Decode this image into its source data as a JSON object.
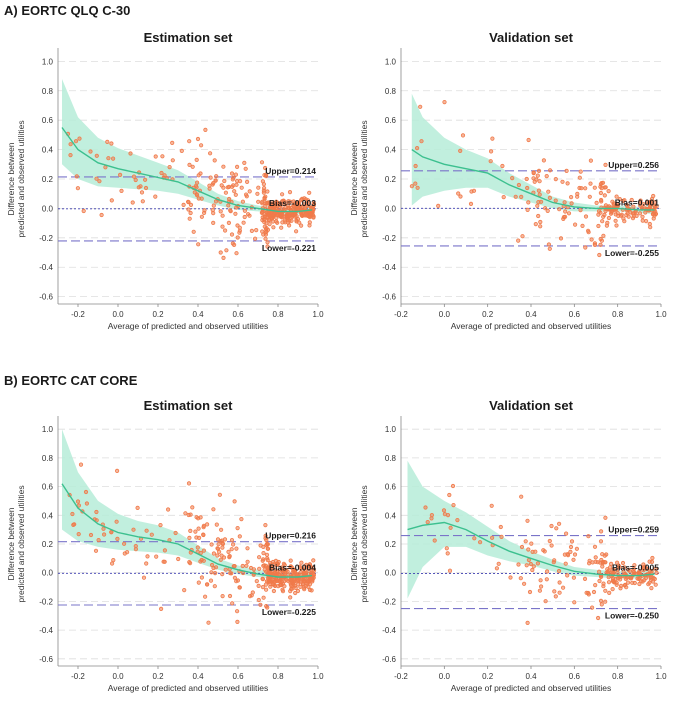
{
  "sections": [
    {
      "title": "A) EORTC QLQ C-30"
    },
    {
      "title": "B) EORTC CAT CORE"
    }
  ],
  "colors": {
    "points": "#f07a4a",
    "band": "#b6ecd8",
    "smooth": "#3cc08f",
    "limit_line": "#7a74c9",
    "bias_line": "#3f3fb0",
    "grid": "#dddddd"
  },
  "chart_data": [
    {
      "id": "a-estimation",
      "type": "scatter",
      "title": "Estimation set",
      "xlabel": "Average of predicted and observed utilities",
      "ylabel": [
        "Difference between",
        "predicted and observed utilities"
      ],
      "xlim": [
        -0.3,
        1.0
      ],
      "xticks": [
        -0.2,
        0.0,
        0.2,
        0.4,
        0.6,
        0.8,
        1.0
      ],
      "ylim": [
        -0.65,
        1.05
      ],
      "yticks": [
        -0.6,
        -0.4,
        -0.2,
        0.0,
        0.2,
        0.4,
        0.6,
        0.8,
        1.0
      ],
      "upper": 0.214,
      "bias": -0.003,
      "lower": -0.221,
      "upper_label": "Upper=0.214",
      "bias_label": "Bias=-0.003",
      "lower_label": "Lower=-0.221",
      "smooth": {
        "x": [
          -0.28,
          -0.2,
          -0.1,
          0.0,
          0.1,
          0.2,
          0.3,
          0.4,
          0.5,
          0.6,
          0.7,
          0.8,
          0.9,
          0.97
        ],
        "y": [
          0.55,
          0.4,
          0.31,
          0.27,
          0.24,
          0.21,
          0.18,
          0.12,
          0.06,
          0.02,
          0.0,
          -0.02,
          -0.02,
          -0.01
        ],
        "upper": [
          0.88,
          0.62,
          0.48,
          0.41,
          0.36,
          0.31,
          0.26,
          0.18,
          0.1,
          0.05,
          0.02,
          0.0,
          0.0,
          0.02
        ],
        "lower": [
          0.3,
          0.2,
          0.15,
          0.14,
          0.13,
          0.12,
          0.1,
          0.06,
          0.02,
          -0.01,
          -0.02,
          -0.04,
          -0.04,
          -0.04
        ]
      },
      "scatter_seed": 11,
      "scatter_n": 420
    },
    {
      "id": "a-validation",
      "type": "scatter",
      "title": "Validation set",
      "xlabel": "Average of predicted and observed utilities",
      "ylabel": [
        "Difference between",
        "predicted and observed utilities"
      ],
      "xlim": [
        -0.2,
        1.0
      ],
      "xticks": [
        -0.2,
        0.0,
        0.2,
        0.4,
        0.6,
        0.8,
        1.0
      ],
      "ylim": [
        -0.65,
        1.05
      ],
      "yticks": [
        -0.6,
        -0.4,
        -0.2,
        0.0,
        0.2,
        0.4,
        0.6,
        0.8,
        1.0
      ],
      "upper": 0.256,
      "bias": 0.001,
      "lower": -0.255,
      "upper_label": "Upper=0.256",
      "bias_label": "Bias=0.001",
      "lower_label": "Lower=-0.255",
      "smooth": {
        "x": [
          -0.15,
          -0.1,
          0.0,
          0.1,
          0.2,
          0.3,
          0.4,
          0.5,
          0.6,
          0.7,
          0.8,
          0.9,
          0.97
        ],
        "y": [
          0.4,
          0.35,
          0.3,
          0.27,
          0.24,
          0.16,
          0.1,
          0.04,
          0.01,
          0.0,
          0.0,
          -0.01,
          -0.01
        ],
        "upper": [
          0.78,
          0.62,
          0.48,
          0.4,
          0.34,
          0.24,
          0.16,
          0.08,
          0.04,
          0.02,
          0.02,
          0.01,
          0.02
        ],
        "lower": [
          0.02,
          0.08,
          0.12,
          0.14,
          0.14,
          0.08,
          0.04,
          0.0,
          -0.02,
          -0.02,
          -0.02,
          -0.03,
          -0.04
        ]
      },
      "scatter_seed": 29,
      "scatter_n": 230
    },
    {
      "id": "b-estimation",
      "type": "scatter",
      "title": "Estimation set",
      "xlabel": "Average of predicted and observed utilities",
      "ylabel": [
        "Difference between",
        "predicted and observed utilities"
      ],
      "xlim": [
        -0.3,
        1.0
      ],
      "xticks": [
        -0.2,
        0.0,
        0.2,
        0.4,
        0.6,
        0.8,
        1.0
      ],
      "ylim": [
        -0.65,
        1.05
      ],
      "yticks": [
        -0.6,
        -0.4,
        -0.2,
        0.0,
        0.2,
        0.4,
        0.6,
        0.8,
        1.0
      ],
      "upper": 0.216,
      "bias": -0.004,
      "lower": -0.225,
      "upper_label": "Upper=0.216",
      "bias_label": "Bias=-0.004",
      "lower_label": "Lower=-0.225",
      "smooth": {
        "x": [
          -0.28,
          -0.2,
          -0.1,
          0.0,
          0.1,
          0.2,
          0.3,
          0.4,
          0.5,
          0.6,
          0.7,
          0.8,
          0.9,
          0.97
        ],
        "y": [
          0.62,
          0.45,
          0.34,
          0.28,
          0.25,
          0.23,
          0.2,
          0.13,
          0.06,
          0.02,
          -0.01,
          -0.03,
          -0.03,
          -0.02
        ],
        "upper": [
          1.0,
          0.7,
          0.5,
          0.41,
          0.36,
          0.33,
          0.28,
          0.19,
          0.1,
          0.05,
          0.02,
          0.0,
          0.0,
          0.01
        ],
        "lower": [
          0.3,
          0.22,
          0.18,
          0.16,
          0.15,
          0.14,
          0.12,
          0.07,
          0.02,
          -0.01,
          -0.03,
          -0.05,
          -0.05,
          -0.05
        ]
      },
      "scatter_seed": 47,
      "scatter_n": 420
    },
    {
      "id": "b-validation",
      "type": "scatter",
      "title": "Validation set",
      "xlabel": "Average of predicted and observed utilities",
      "ylabel": [
        "Difference between",
        "predicted and observed utilities"
      ],
      "xlim": [
        -0.2,
        1.0
      ],
      "xticks": [
        -0.2,
        0.0,
        0.2,
        0.4,
        0.6,
        0.8,
        1.0
      ],
      "ylim": [
        -0.65,
        1.05
      ],
      "yticks": [
        -0.6,
        -0.4,
        -0.2,
        0.0,
        0.2,
        0.4,
        0.6,
        0.8,
        1.0
      ],
      "upper": 0.259,
      "bias": -0.005,
      "lower": -0.25,
      "upper_label": "Upper=0.259",
      "bias_label": "Bias=-0.005",
      "lower_label": "Lower=-0.250",
      "smooth": {
        "x": [
          -0.17,
          -0.1,
          0.0,
          0.1,
          0.2,
          0.3,
          0.4,
          0.5,
          0.6,
          0.7,
          0.8,
          0.9,
          0.97
        ],
        "y": [
          0.3,
          0.33,
          0.35,
          0.3,
          0.22,
          0.15,
          0.1,
          0.05,
          0.01,
          -0.01,
          -0.02,
          -0.02,
          -0.01
        ],
        "upper": [
          0.78,
          0.6,
          0.5,
          0.42,
          0.32,
          0.22,
          0.15,
          0.09,
          0.04,
          0.02,
          0.01,
          0.01,
          0.02
        ],
        "lower": [
          -0.18,
          0.04,
          0.18,
          0.18,
          0.12,
          0.08,
          0.05,
          0.01,
          -0.02,
          -0.03,
          -0.04,
          -0.04,
          -0.04
        ]
      },
      "scatter_seed": 83,
      "scatter_n": 230
    }
  ]
}
